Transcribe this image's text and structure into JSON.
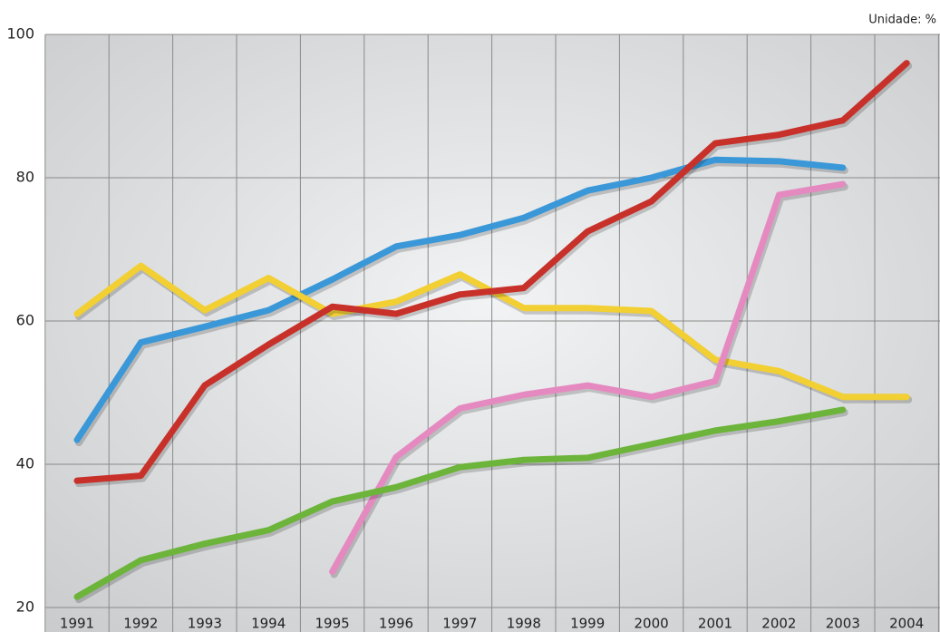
{
  "chart_data": {
    "type": "line",
    "subtitle": "Unidade: %",
    "categories": [
      "1991",
      "1992",
      "1993",
      "1994",
      "1995",
      "1996",
      "1997",
      "1998",
      "1999",
      "2000",
      "2001",
      "2002",
      "2003",
      "2004"
    ],
    "series": [
      {
        "color": "#3a98d8",
        "values": [
          43.4,
          57,
          59.2,
          61.5,
          65.8,
          70.4,
          72,
          74.4,
          78.2,
          80,
          82.5,
          82.3,
          81.4,
          null
        ]
      },
      {
        "color": "#f2cf32",
        "values": [
          61,
          67.7,
          61.5,
          66,
          61,
          62.7,
          66.5,
          61.8,
          61.8,
          61.4,
          54.6,
          53,
          49.4,
          49.4
        ]
      },
      {
        "color": "#e58ac0",
        "values": [
          null,
          null,
          null,
          null,
          25,
          41,
          47.8,
          49.7,
          51,
          49.4,
          51.6,
          77.6,
          79.1,
          null
        ]
      },
      {
        "color": "#6cb43a",
        "values": [
          21.5,
          26.6,
          28.9,
          30.8,
          34.8,
          36.8,
          39.6,
          40.6,
          40.9,
          42.8,
          44.7,
          46,
          47.6,
          null
        ]
      },
      {
        "color": "#c8302a",
        "values": [
          37.7,
          38.4,
          51,
          56.7,
          62,
          61,
          63.7,
          64.6,
          72.5,
          76.7,
          84.8,
          86,
          88,
          96
        ]
      }
    ],
    "ylim": [
      20,
      100
    ],
    "yticks": [
      20,
      40,
      60,
      80,
      100
    ],
    "grid": true
  }
}
